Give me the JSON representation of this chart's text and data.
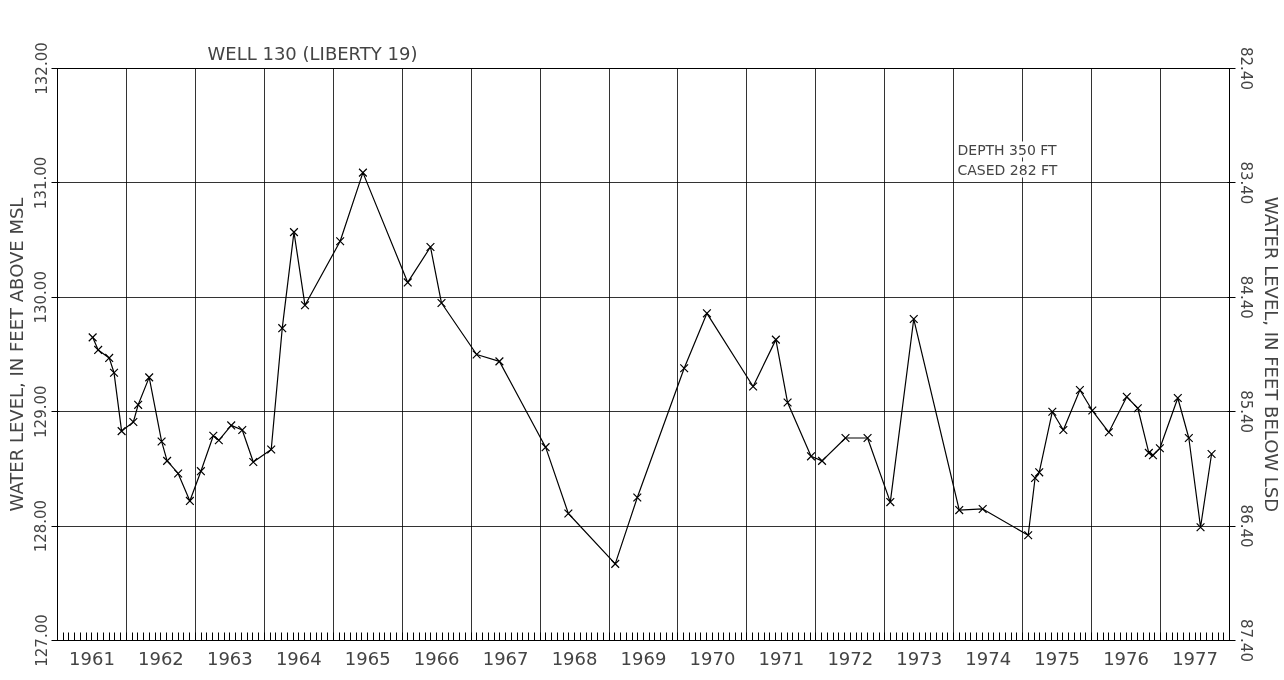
{
  "chart_data": {
    "type": "line",
    "title": "WELL 130 (LIBERTY 19)",
    "ylabel": "WATER LEVEL, IN FEET ABOVE MSL",
    "y2label": "WATER LEVEL, IN FEET BELOW LSD",
    "annotations": [
      "DEPTH    350 FT",
      "CASED    282 FT"
    ],
    "x": [
      1961.51,
      1961.59,
      1961.75,
      1961.82,
      1961.93,
      1962.1,
      1962.17,
      1962.33,
      1962.51,
      1962.59,
      1962.75,
      1962.92,
      1963.08,
      1963.26,
      1963.34,
      1963.52,
      1963.68,
      1963.84,
      1964.1,
      1964.26,
      1964.43,
      1964.59,
      1965.1,
      1965.43,
      1966.08,
      1966.41,
      1966.57,
      1967.08,
      1967.41,
      1968.08,
      1968.41,
      1969.09,
      1969.41,
      1970.09,
      1970.42,
      1971.09,
      1971.42,
      1971.59,
      1971.93,
      1972.09,
      1972.43,
      1972.75,
      1973.08,
      1973.42,
      1974.08,
      1974.42,
      1975.08,
      1975.18,
      1975.24,
      1975.43,
      1975.59,
      1975.83,
      1976.01,
      1976.25,
      1976.51,
      1976.67,
      1976.83,
      1976.89,
      1976.99,
      1977.25,
      1977.41,
      1977.58,
      1977.74
    ],
    "series": [
      {
        "color": "#000000",
        "values": [
          129.65,
          129.54,
          129.47,
          129.34,
          128.83,
          128.91,
          129.06,
          129.3,
          128.74,
          128.57,
          128.46,
          128.22,
          128.48,
          128.79,
          128.75,
          128.88,
          128.84,
          128.56,
          128.67,
          129.73,
          130.57,
          129.93,
          130.49,
          131.09,
          130.13,
          130.44,
          129.95,
          129.5,
          129.44,
          128.69,
          128.11,
          127.67,
          128.25,
          129.38,
          129.86,
          129.22,
          129.63,
          129.08,
          128.61,
          128.57,
          128.77,
          128.77,
          128.21,
          129.81,
          128.14,
          128.15,
          127.92,
          128.42,
          128.47,
          129.0,
          128.84,
          129.19,
          129.01,
          128.82,
          129.13,
          129.03,
          128.64,
          128.62,
          128.68,
          129.12,
          128.77,
          127.99,
          128.63
        ]
      }
    ],
    "xlim": [
      1961,
      1978
    ],
    "xticks": [
      {
        "value": 1961,
        "label": null
      },
      {
        "value": 1961.5,
        "label": "1961"
      },
      {
        "value": 1962,
        "label": null
      },
      {
        "value": 1962.5,
        "label": "1962"
      },
      {
        "value": 1963,
        "label": null
      },
      {
        "value": 1963.5,
        "label": "1963"
      },
      {
        "value": 1964,
        "label": null
      },
      {
        "value": 1964.5,
        "label": "1964"
      },
      {
        "value": 1965,
        "label": null
      },
      {
        "value": 1965.5,
        "label": "1965"
      },
      {
        "value": 1966,
        "label": null
      },
      {
        "value": 1966.5,
        "label": "1966"
      },
      {
        "value": 1967,
        "label": null
      },
      {
        "value": 1967.5,
        "label": "1967"
      },
      {
        "value": 1968,
        "label": null
      },
      {
        "value": 1968.5,
        "label": "1968"
      },
      {
        "value": 1969,
        "label": null
      },
      {
        "value": 1969.5,
        "label": "1969"
      },
      {
        "value": 1970,
        "label": null
      },
      {
        "value": 1970.5,
        "label": "1970"
      },
      {
        "value": 1971,
        "label": null
      },
      {
        "value": 1971.5,
        "label": "1971"
      },
      {
        "value": 1972,
        "label": null
      },
      {
        "value": 1972.5,
        "label": "1972"
      },
      {
        "value": 1973,
        "label": null
      },
      {
        "value": 1973.5,
        "label": "1973"
      },
      {
        "value": 1974,
        "label": null
      },
      {
        "value": 1974.5,
        "label": "1974"
      },
      {
        "value": 1975,
        "label": null
      },
      {
        "value": 1975.5,
        "label": "1975"
      },
      {
        "value": 1976,
        "label": null
      },
      {
        "value": 1976.5,
        "label": "1976"
      },
      {
        "value": 1977,
        "label": null
      },
      {
        "value": 1977.5,
        "label": "1977"
      },
      {
        "value": 1978,
        "label": null
      }
    ],
    "ylim": [
      127,
      132
    ],
    "yticks": [
      {
        "value": 127,
        "label": "127.00"
      },
      {
        "value": 128,
        "label": "128.00"
      },
      {
        "value": 129,
        "label": "129.00"
      },
      {
        "value": 130,
        "label": "130.00"
      },
      {
        "value": 131,
        "label": "131.00"
      },
      {
        "value": 132,
        "label": "132.00"
      }
    ],
    "y2lim": [
      87.4,
      82.4
    ],
    "y2ticks": [
      {
        "value": 87.4,
        "label": "87.40"
      },
      {
        "value": 86.4,
        "label": "86.40"
      },
      {
        "value": 85.4,
        "label": "85.40"
      },
      {
        "value": 84.4,
        "label": "84.40"
      },
      {
        "value": 83.4,
        "label": "83.40"
      },
      {
        "value": 82.4,
        "label": "82.40"
      }
    ],
    "grid": true,
    "marker": "cross",
    "line_style": "solid"
  }
}
